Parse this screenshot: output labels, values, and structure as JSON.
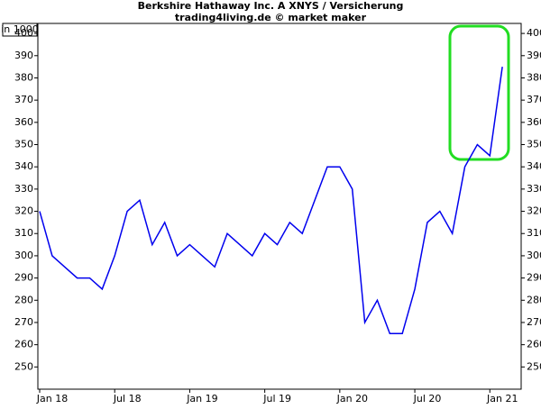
{
  "chart_data": {
    "type": "line",
    "title": "Berkshire Hathaway Inc. A XNYS / Versicherung",
    "subtitle": "trading4living.de © market maker",
    "unit_label": "in 1000",
    "x": [
      "2018-01",
      "2018-02",
      "2018-03",
      "2018-04",
      "2018-05",
      "2018-06",
      "2018-07",
      "2018-08",
      "2018-09",
      "2018-10",
      "2018-11",
      "2018-12",
      "2019-01",
      "2019-02",
      "2019-03",
      "2019-04",
      "2019-05",
      "2019-06",
      "2019-07",
      "2019-08",
      "2019-09",
      "2019-10",
      "2019-11",
      "2019-12",
      "2020-01",
      "2020-02",
      "2020-03",
      "2020-04",
      "2020-05",
      "2020-06",
      "2020-07",
      "2020-08",
      "2020-09",
      "2020-10",
      "2020-11",
      "2020-12",
      "2021-01",
      "2021-02"
    ],
    "series": [
      {
        "name": "Berkshire Hathaway Inc. A",
        "color": "#0000ee",
        "values": [
          320,
          300,
          295,
          290,
          290,
          285,
          300,
          320,
          325,
          305,
          315,
          300,
          305,
          300,
          295,
          310,
          305,
          300,
          310,
          305,
          315,
          310,
          325,
          340,
          340,
          330,
          270,
          280,
          265,
          265,
          285,
          315,
          320,
          310,
          340,
          350,
          345,
          385
        ]
      }
    ],
    "xlim": [
      "2018-01",
      "2021-03"
    ],
    "xticks": [
      {
        "value": "2018-01",
        "label": "Jan 18"
      },
      {
        "value": "2018-07",
        "label": "Jul 18"
      },
      {
        "value": "2019-01",
        "label": "Jan 19"
      },
      {
        "value": "2019-07",
        "label": "Jul 19"
      },
      {
        "value": "2020-01",
        "label": "Jan 20"
      },
      {
        "value": "2020-07",
        "label": "Jul 20"
      },
      {
        "value": "2021-01",
        "label": "Jan 21"
      }
    ],
    "ylim": [
      240,
      404.5
    ],
    "yticks": [
      250,
      260,
      270,
      280,
      290,
      300,
      310,
      320,
      330,
      340,
      350,
      360,
      370,
      380,
      390,
      400
    ]
  }
}
